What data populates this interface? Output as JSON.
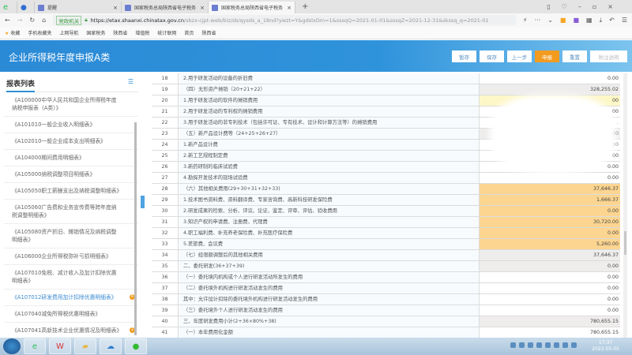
{
  "browser": {
    "tabs": [
      {
        "label": "提醒"
      },
      {
        "label": "国家税务总局陕西省电子税务"
      },
      {
        "label": "国家税务总局陕西省电子税务"
      }
    ],
    "url_badge": "党政机关",
    "url_host": "https://etax.shaanxi.chinatax.gov.cn",
    "url_path": "/sbzx-cjpt-web/biz/sb/qysds_a_18nd?ywzt=Y&gdslxDm=1&sssqQ=2021-01-01&sssqZ=2021-12-31&skssq_q=2021-01",
    "bookmarks": [
      "收藏",
      "手机收藏夹",
      "上网导航",
      "国家税务",
      "陕西省",
      "增值税",
      "统计联网",
      "首页",
      "陕西省"
    ]
  },
  "header": {
    "title": "企业所得税年度申报A类",
    "buttons": [
      {
        "label": "暂存"
      },
      {
        "label": "保存"
      },
      {
        "label": "上一步"
      },
      {
        "label": "申报"
      },
      {
        "label": "重置"
      },
      {
        "label": "附注说明"
      }
    ],
    "accent": "#2f8fd8",
    "primary": "#f39b1f"
  },
  "sidebar": {
    "title": "报表列表",
    "items": [
      {
        "label": "《A100000中华人民共和国企业所得税年度纳税申报表（A类）》"
      },
      {
        "label": "《A101010一般企业收入明细表》"
      },
      {
        "label": "《A102010一般企业成本支出明细表》"
      },
      {
        "label": "《A104000期间费用明细表》"
      },
      {
        "label": "《A105000纳税调整项目明细表》"
      },
      {
        "label": "《A105050职工薪酬支出及纳税调整明细表》"
      },
      {
        "label": "《A105060广告费和业务宣传费等跨年度纳税调整明细表》"
      },
      {
        "label": "《A105080资产折旧、摊销情况及纳税调整明细表》"
      },
      {
        "label": "《A106000企业所得税弥补亏损明细表》"
      },
      {
        "label": "《A107010免税、减计收入及加计扣除优惠明细表》"
      },
      {
        "label": "《A107012研发费用加计扣除优惠明细表》",
        "badge": "6",
        "active": true
      },
      {
        "label": "《A107040减免所得税优惠明细表》"
      },
      {
        "label": "《A107041高新技术企业优惠情况及明细表》",
        "badge": "2"
      }
    ]
  },
  "table": {
    "rows": [
      {
        "no": "18",
        "desc": "    2.用于研发活动的设备的折旧费",
        "val": "0.00",
        "bg": ""
      },
      {
        "no": "19",
        "desc": "（四）无形资产摊销（20+21+22）",
        "val": "328,255.02",
        "bg": "g"
      },
      {
        "no": "20",
        "desc": "    1.用于研发活动的软件的摊销费用",
        "val": "00",
        "bg": "y"
      },
      {
        "no": "21",
        "desc": "    2.用于研发活动的专利权的摊销费用",
        "val": "00",
        "bg": ""
      },
      {
        "no": "22",
        "desc": "    3.用于研发活动的非专利技术（包括许可证、专有技术、设计和计算方法等）的摊销费用",
        "val": ".",
        "bg": ""
      },
      {
        "no": "23",
        "desc": "（五）新产品设计费等（24+25+26+27）",
        "val": "00",
        "bg": "g"
      },
      {
        "no": "24",
        "desc": "    1.新产品设计费",
        "val": "00",
        "bg": ""
      },
      {
        "no": "25",
        "desc": "    2.新工艺规程制定费",
        "val": "00",
        "bg": ""
      },
      {
        "no": "26",
        "desc": "    3.新药研制的临床试验费",
        "val": "0.00",
        "bg": ""
      },
      {
        "no": "27",
        "desc": "    4.勘探开发技术的现场试验费",
        "val": "0.00",
        "bg": ""
      },
      {
        "no": "28",
        "desc": "（六）其他相关费用(29+30+31+32+33)",
        "val": "37,646.37",
        "bg": "o"
      },
      {
        "no": "29",
        "desc": "    1.技术图书资料费、资料翻译费、专家咨询费、高新科技研发保险费",
        "val": "1,666.37",
        "bg": "o"
      },
      {
        "no": "30",
        "desc": "    2.研发成果的检索、分析、评议、论证、鉴定、评审、评估、验收费用",
        "val": "0.00",
        "bg": "o"
      },
      {
        "no": "31",
        "desc": "    3.知识产权的申请费、注册费、代理费",
        "val": "30,720.00",
        "bg": "o"
      },
      {
        "no": "32",
        "desc": "    4.职工福利费、补充养老保险费、补充医疗保险费",
        "val": "0.00",
        "bg": "o"
      },
      {
        "no": "33",
        "desc": "    5.差旅费、会议费",
        "val": "5,260.00",
        "bg": "o"
      },
      {
        "no": "34",
        "desc": "（七）经限额调整后的其他相关费用",
        "val": "37,646.37",
        "bg": "g"
      },
      {
        "no": "35",
        "desc": "二、委托研发(36+37+39)",
        "val": "0.00",
        "bg": "g"
      },
      {
        "no": "36",
        "desc": "（一）委托境内机构或个人进行研发活动所发生的费用",
        "val": "0.00",
        "bg": ""
      },
      {
        "no": "37",
        "desc": "（二）委托境外机构进行研发活动发生的费用",
        "val": "0.00",
        "bg": ""
      },
      {
        "no": "38",
        "desc": "        其中：允许加计扣除的委托境外机构进行研发活动发生的费用",
        "val": "0.00",
        "bg": ""
      },
      {
        "no": "39",
        "desc": "（三）委托境外个人进行研发活动发生的费用",
        "val": "0.00",
        "bg": ""
      },
      {
        "no": "40",
        "desc": "三、年度研发费用小计(2+36×80%+38)",
        "val": "780,655.15",
        "bg": "g"
      },
      {
        "no": "41",
        "desc": "（一）本年费用化金额",
        "val": "780,655.15",
        "bg": ""
      }
    ]
  },
  "taskbar": {
    "time": "17:37",
    "date": "2022-05-05"
  }
}
